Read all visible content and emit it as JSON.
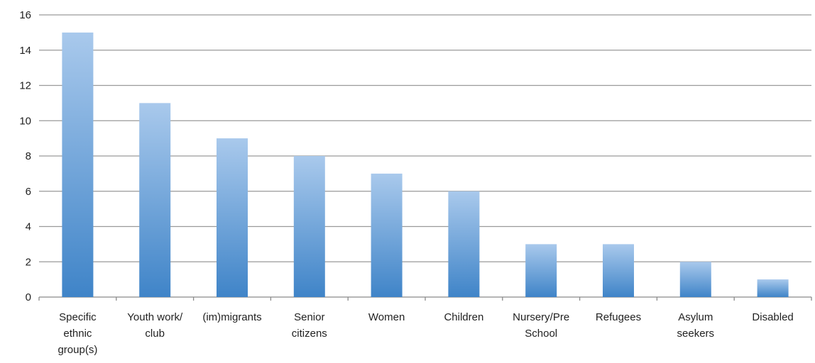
{
  "chart_data": {
    "type": "bar",
    "categories": [
      "Specific ethnic group(s)",
      "Youth work/ club",
      "(im)migrants",
      "Senior citizens",
      "Women",
      "Children",
      "Nursery/Pre School",
      "Refugees",
      "Asylum seekers",
      "Disabled"
    ],
    "category_label_lines": [
      [
        "Specific",
        "ethnic",
        "group(s)"
      ],
      [
        "Youth work/",
        "club"
      ],
      [
        "(im)migrants"
      ],
      [
        "Senior",
        "citizens"
      ],
      [
        "Women"
      ],
      [
        "Children"
      ],
      [
        "Nursery/Pre",
        "School"
      ],
      [
        "Refugees"
      ],
      [
        "Asylum",
        "seekers"
      ],
      [
        "Disabled"
      ]
    ],
    "values": [
      15,
      11,
      9,
      8,
      7,
      6,
      3,
      3,
      2,
      1
    ],
    "yticks": [
      0,
      2,
      4,
      6,
      8,
      10,
      12,
      14,
      16
    ],
    "ylim": [
      0,
      16
    ],
    "title": "",
    "xlabel": "",
    "ylabel": "",
    "grid": true,
    "legend": "none",
    "colors": {
      "bar_top": "#a9c9ec",
      "bar_bottom": "#3f84c8",
      "grid": "#9a9a9a"
    }
  }
}
